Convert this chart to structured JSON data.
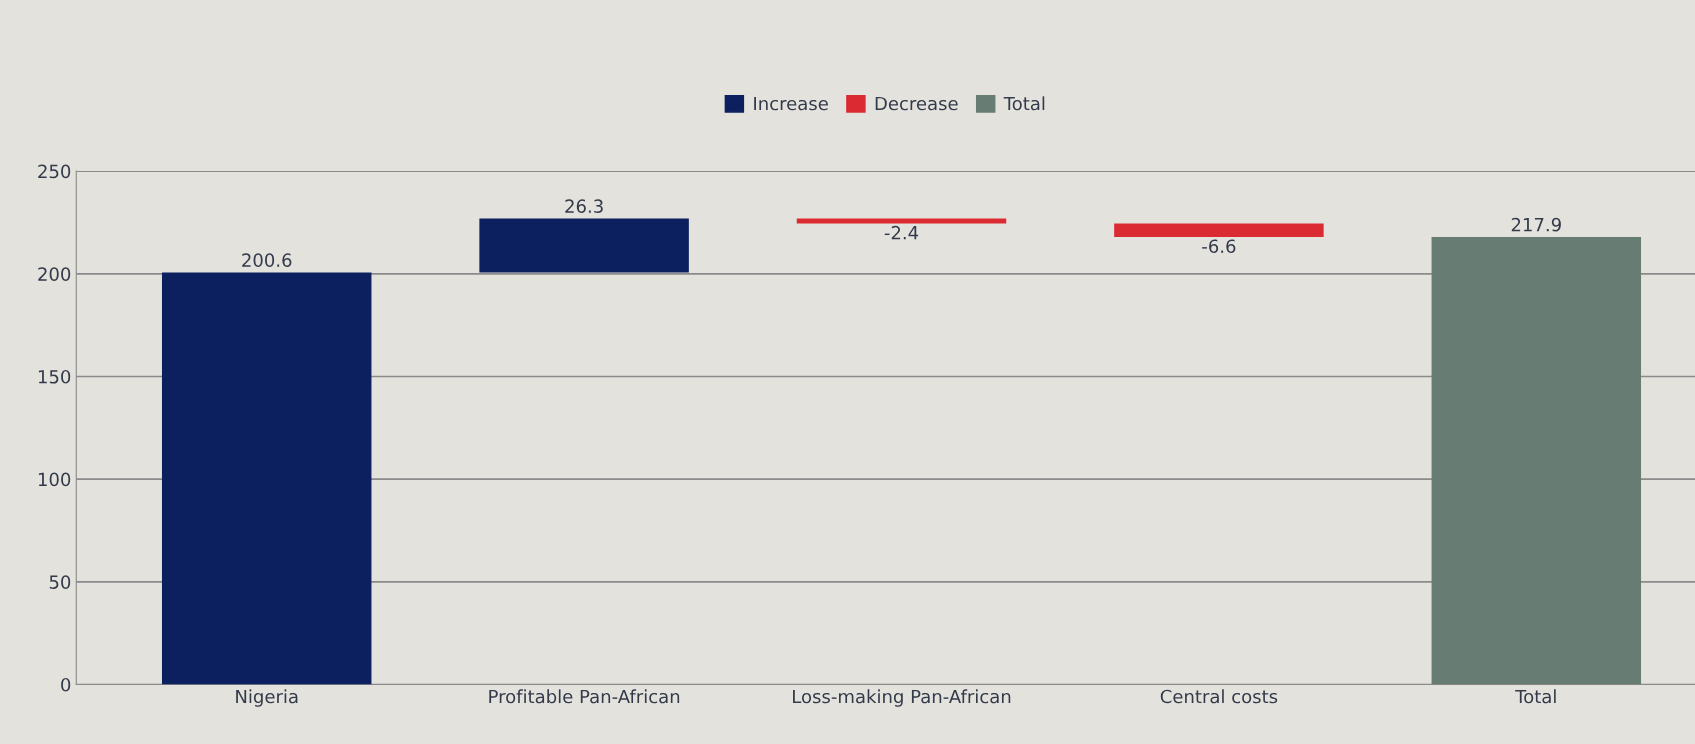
{
  "chart_data": {
    "type": "bar",
    "categories": [
      "Nigeria",
      "Profitable Pan-African",
      "Loss-making Pan-African",
      "Central costs",
      "Total"
    ],
    "series": [
      {
        "name": "Increase",
        "color": "#0c2060",
        "values": [
          200.6,
          26.3,
          null,
          null,
          null
        ],
        "base": [
          0,
          200.6,
          null,
          null,
          null
        ]
      },
      {
        "name": "Decrease",
        "color": "#dc2a32",
        "values": [
          null,
          null,
          -2.4,
          -6.6,
          null
        ],
        "base": [
          null,
          null,
          226.9,
          224.5,
          null
        ]
      },
      {
        "name": "Total",
        "color": "#677d74",
        "values": [
          null,
          null,
          null,
          null,
          217.9
        ],
        "base": [
          null,
          null,
          null,
          null,
          0
        ]
      }
    ],
    "ylim": [
      0,
      250
    ],
    "yticks": [
      0,
      50,
      100,
      150,
      200,
      250
    ],
    "grid": "y",
    "legend": "top",
    "data_labels": true
  }
}
